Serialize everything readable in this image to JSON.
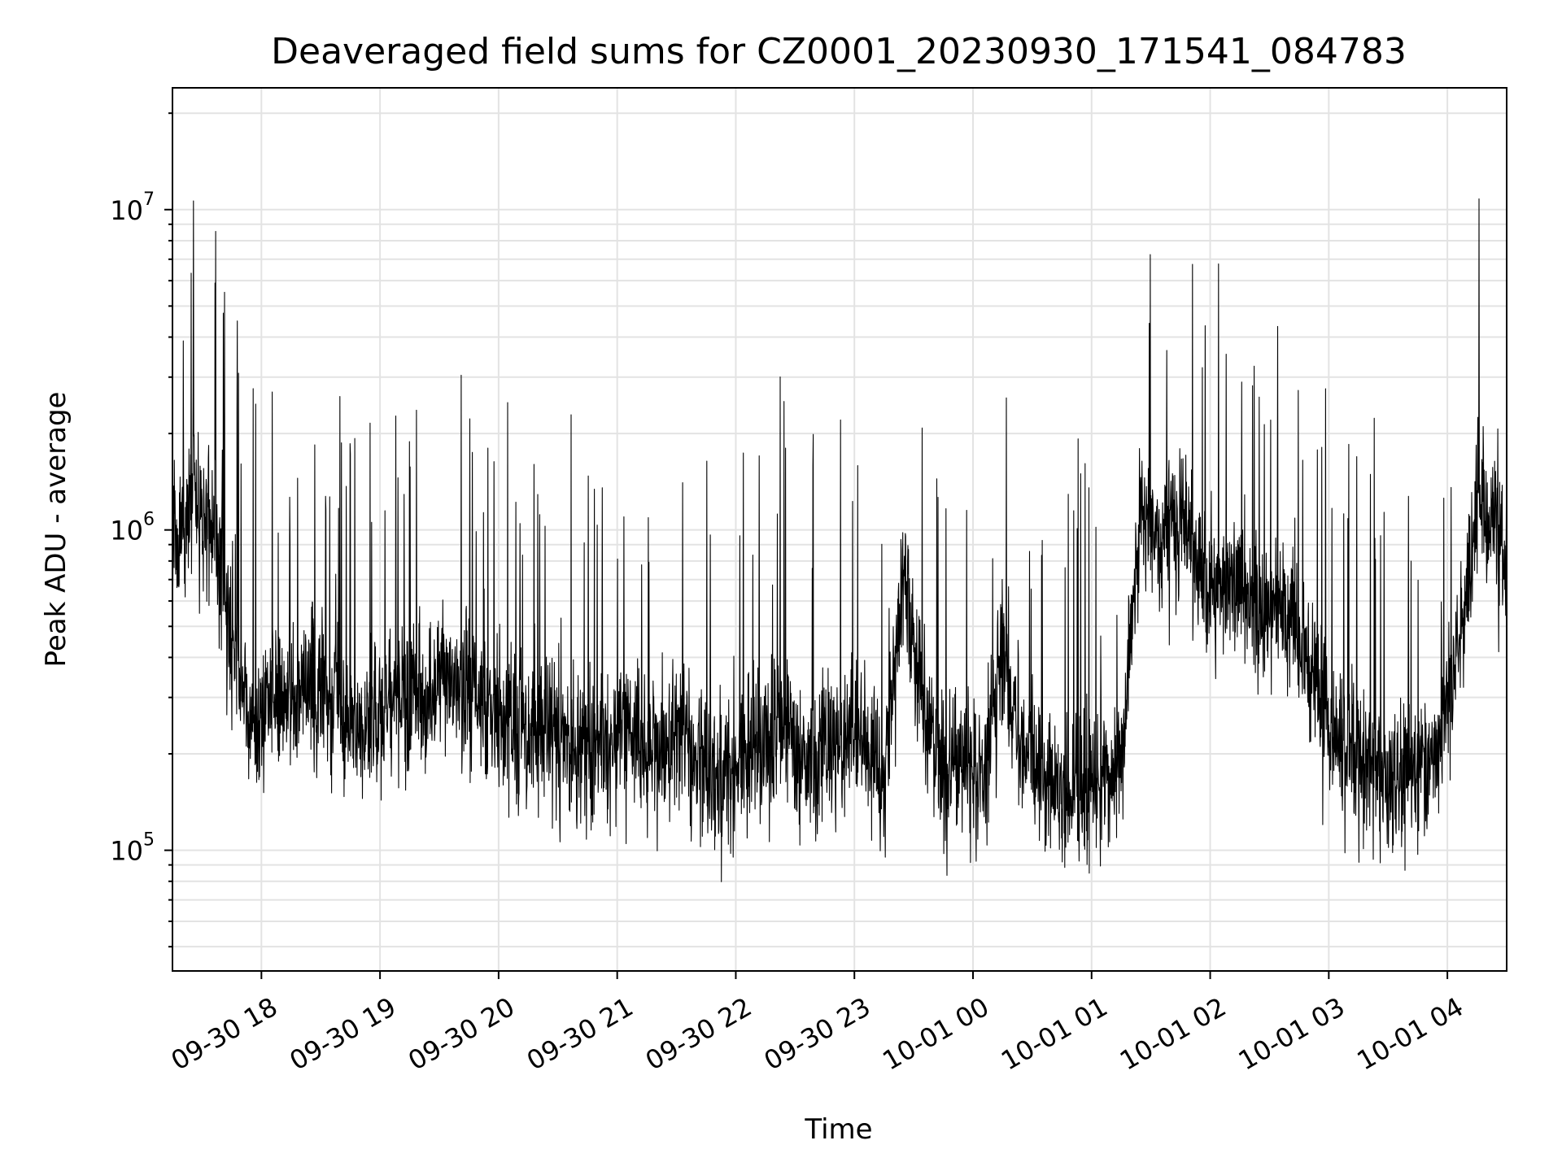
{
  "chart_data": {
    "type": "line",
    "title": "Deaveraged field sums for CZ0001_20230930_171541_084783",
    "xlabel": "Time",
    "ylabel": "Peak ADU - average",
    "yscale": "log",
    "ylim": [
      42000,
      24000000
    ],
    "xlim": [
      "2023-09-30 17:15",
      "2023-10-01 04:30"
    ],
    "grid": true,
    "line_color": "#000000",
    "grid_color": "#e3e3e3",
    "x_ticks": [
      {
        "value": "2023-09-30 18:00",
        "label": "09-30 18"
      },
      {
        "value": "2023-09-30 19:00",
        "label": "09-30 19"
      },
      {
        "value": "2023-09-30 20:00",
        "label": "09-30 20"
      },
      {
        "value": "2023-09-30 21:00",
        "label": "09-30 21"
      },
      {
        "value": "2023-09-30 22:00",
        "label": "09-30 22"
      },
      {
        "value": "2023-09-30 23:00",
        "label": "09-30 23"
      },
      {
        "value": "2023-10-01 00:00",
        "label": "10-01 00"
      },
      {
        "value": "2023-10-01 01:00",
        "label": "10-01 01"
      },
      {
        "value": "2023-10-01 02:00",
        "label": "10-01 02"
      },
      {
        "value": "2023-10-01 03:00",
        "label": "10-01 03"
      },
      {
        "value": "2023-10-01 04:00",
        "label": "10-01 04"
      }
    ],
    "y_ticks": [
      {
        "value": 100000,
        "base": "10",
        "exp": "5"
      },
      {
        "value": 1000000,
        "base": "10",
        "exp": "6"
      },
      {
        "value": 10000000,
        "base": "10",
        "exp": "7"
      }
    ],
    "series": [
      {
        "x": [
          "2023-09-30 17:15",
          "2023-09-30 17:25",
          "2023-09-30 17:35",
          "2023-09-30 17:45",
          "2023-09-30 17:55",
          "2023-09-30 18:05",
          "2023-09-30 18:15",
          "2023-09-30 18:25",
          "2023-09-30 18:35",
          "2023-09-30 18:45",
          "2023-09-30 18:55",
          "2023-09-30 19:05",
          "2023-09-30 19:15",
          "2023-09-30 19:25",
          "2023-09-30 19:35",
          "2023-09-30 19:45",
          "2023-09-30 19:55",
          "2023-09-30 20:05",
          "2023-09-30 20:15",
          "2023-09-30 20:25",
          "2023-09-30 20:35",
          "2023-09-30 20:45",
          "2023-09-30 20:55",
          "2023-09-30 21:05",
          "2023-09-30 21:15",
          "2023-09-30 21:25",
          "2023-09-30 21:35",
          "2023-09-30 21:45",
          "2023-09-30 21:55",
          "2023-09-30 22:05",
          "2023-09-30 22:15",
          "2023-09-30 22:25",
          "2023-09-30 22:35",
          "2023-09-30 22:45",
          "2023-09-30 22:55",
          "2023-09-30 23:05",
          "2023-09-30 23:15",
          "2023-09-30 23:25",
          "2023-09-30 23:35",
          "2023-09-30 23:45",
          "2023-09-30 23:55",
          "2023-10-01 00:05",
          "2023-10-01 00:15",
          "2023-10-01 00:25",
          "2023-10-01 00:35",
          "2023-10-01 00:45",
          "2023-10-01 00:55",
          "2023-10-01 01:05",
          "2023-10-01 01:15",
          "2023-10-01 01:25",
          "2023-10-01 01:35",
          "2023-10-01 01:45",
          "2023-10-01 01:55",
          "2023-10-01 02:05",
          "2023-10-01 02:15",
          "2023-10-01 02:25",
          "2023-10-01 02:35",
          "2023-10-01 02:45",
          "2023-10-01 02:55",
          "2023-10-01 03:05",
          "2023-10-01 03:15",
          "2023-10-01 03:25",
          "2023-10-01 03:35",
          "2023-10-01 03:45",
          "2023-10-01 03:55",
          "2023-10-01 04:05",
          "2023-10-01 04:15",
          "2023-10-01 04:25",
          "2023-10-01 04:30"
        ],
        "y": [
          900000,
          1200000,
          1100000,
          450000,
          250000,
          300000,
          280000,
          330000,
          300000,
          260000,
          250000,
          280000,
          300000,
          290000,
          330000,
          300000,
          260000,
          240000,
          230000,
          250000,
          220000,
          200000,
          210000,
          240000,
          200000,
          210000,
          220000,
          180000,
          170000,
          190000,
          220000,
          230000,
          200000,
          210000,
          220000,
          210000,
          200000,
          700000,
          260000,
          180000,
          190000,
          170000,
          450000,
          200000,
          160000,
          150000,
          160000,
          170000,
          180000,
          1200000,
          900000,
          1100000,
          800000,
          600000,
          700000,
          500000,
          600000,
          450000,
          300000,
          200000,
          200000,
          170000,
          160000,
          190000,
          200000,
          400000,
          1200000,
          1000000,
          750000
        ]
      }
    ]
  }
}
